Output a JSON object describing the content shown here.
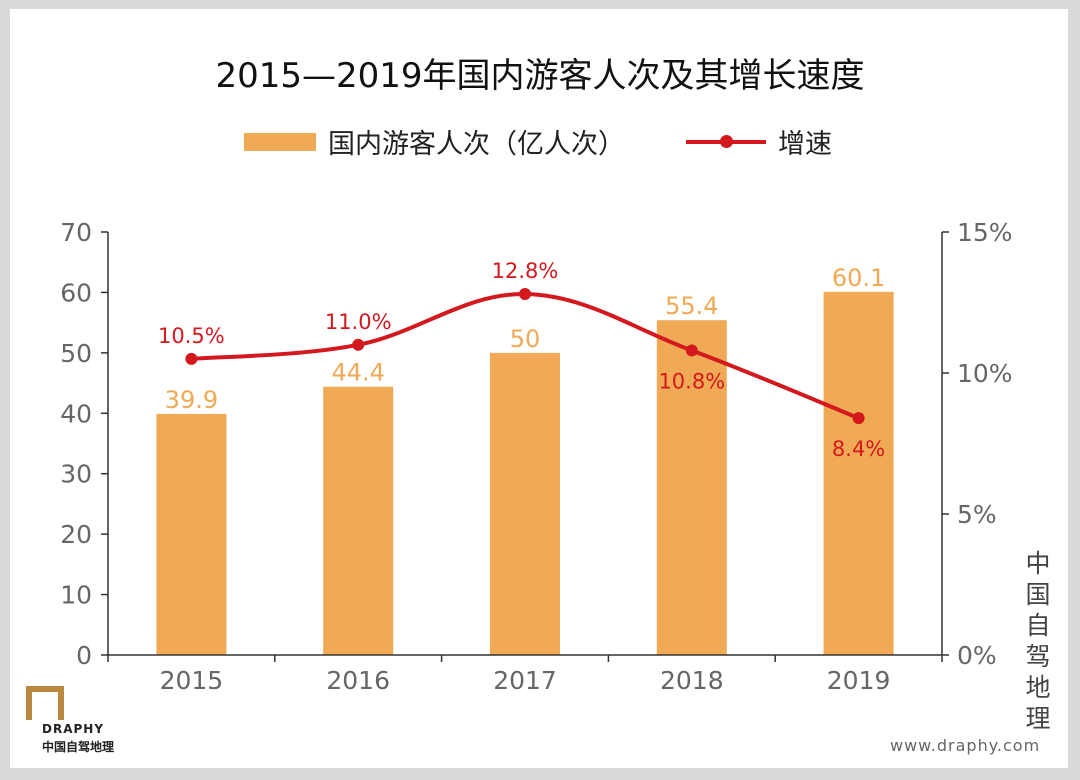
{
  "chart_data": {
    "type": "bar",
    "title": "2015—2019年国内游客人次及其增长速度",
    "categories": [
      "2015",
      "2016",
      "2017",
      "2018",
      "2019"
    ],
    "series": [
      {
        "name": "国内游客人次（亿人次）",
        "type": "bar",
        "axis": "left",
        "values": [
          39.9,
          44.4,
          50,
          55.4,
          60.1
        ],
        "labels": [
          "39.9",
          "44.4",
          "50",
          "55.4",
          "60.1"
        ],
        "color": "#f0a955"
      },
      {
        "name": "增速",
        "type": "line",
        "axis": "right",
        "values": [
          10.5,
          11.0,
          12.8,
          10.8,
          8.4
        ],
        "labels": [
          "10.5%",
          "11.0%",
          "12.8%",
          "10.8%",
          "8.4%"
        ],
        "color": "#d4191e"
      }
    ],
    "ylim": [
      0,
      70
    ],
    "yticks": [
      "0",
      "10",
      "20",
      "30",
      "40",
      "50",
      "60",
      "70"
    ],
    "y2lim": [
      0,
      15
    ],
    "y2ticks": [
      "0%",
      "5%",
      "10%",
      "15%"
    ],
    "legend": "top-center",
    "grid": false
  },
  "legend": {
    "bar_label": "国内游客人次（亿人次）",
    "line_label": "增速"
  },
  "brand": {
    "side_text": "中国自驾地理",
    "logo_word": "DRAPHY",
    "logo_cn": "中国自驾地理",
    "website": "www.draphy.com"
  }
}
